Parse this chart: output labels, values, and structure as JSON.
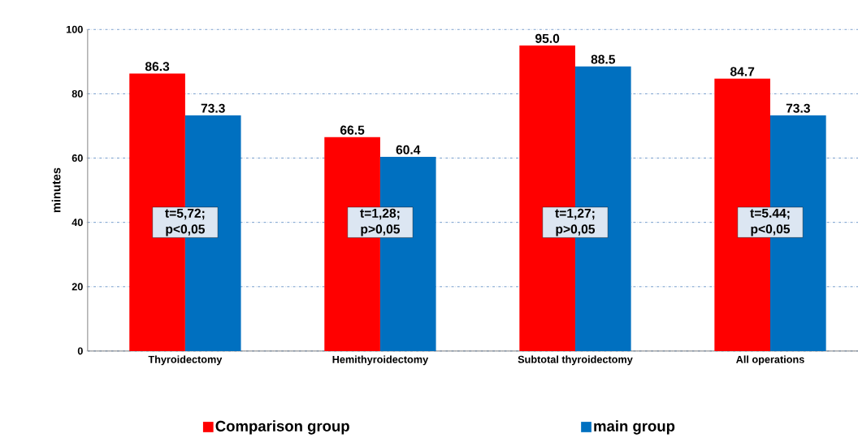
{
  "chart_data": {
    "type": "bar",
    "ylabel": "minutes",
    "categories": [
      "Thyroidectomy",
      "Hemithyroidectomy",
      "Subtotal thyroidectomy",
      "All operations"
    ],
    "series": [
      {
        "name": "Comparison group",
        "color": "#ff0000",
        "values": [
          86.3,
          66.5,
          95.0,
          84.7
        ],
        "value_labels": [
          "86.3",
          "66.5",
          "95.0",
          "84.7"
        ]
      },
      {
        "name": "main group",
        "color": "#0070c0",
        "values": [
          73.3,
          60.4,
          88.5,
          73.3
        ],
        "value_labels": [
          "73.3",
          "60.4",
          "88.5",
          "73.3"
        ]
      }
    ],
    "ylim": [
      0,
      100
    ],
    "yticks": [
      0,
      20,
      40,
      60,
      80,
      100
    ],
    "grid": "y",
    "legend": "bottom",
    "annotations": [
      {
        "text": "t=5,72; p<0,05",
        "x": "Thyroidectomy",
        "y": 40
      },
      {
        "text": "t=1,28; p>0,05",
        "x": "Hemithyroidectomy",
        "y": 40
      },
      {
        "text": "t=1,27; p>0,05",
        "x": "Subtotal thyroidectomy",
        "y": 40
      },
      {
        "text": "t=5.44; p<0,05",
        "x": "All operations",
        "y": 40
      }
    ]
  }
}
